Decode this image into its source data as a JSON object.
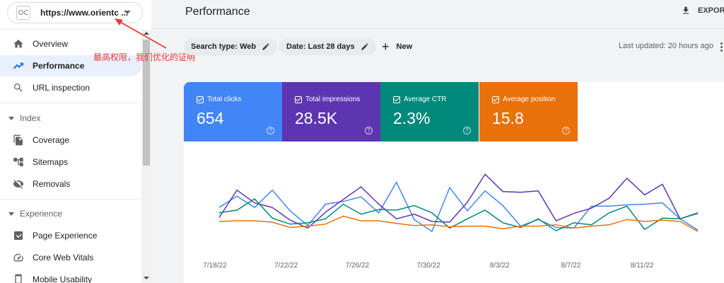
{
  "property": {
    "logo_text": "OC",
    "url": "https://www.orientc ..."
  },
  "sidebar": {
    "items": [
      {
        "label": "Overview",
        "icon": "home-icon"
      },
      {
        "label": "Performance",
        "icon": "trending-up-icon",
        "active": true
      },
      {
        "label": "URL inspection",
        "icon": "search-icon"
      }
    ],
    "index_section": {
      "title": "Index",
      "items": [
        {
          "label": "Coverage",
          "icon": "file-copy-icon"
        },
        {
          "label": "Sitemaps",
          "icon": "sitemap-icon"
        },
        {
          "label": "Removals",
          "icon": "visibility-off-icon"
        }
      ]
    },
    "experience_section": {
      "title": "Experience",
      "items": [
        {
          "label": "Page Experience",
          "icon": "page-experience-icon"
        },
        {
          "label": "Core Web Vitals",
          "icon": "speed-icon"
        },
        {
          "label": "Mobile Usability",
          "icon": "smartphone-icon"
        }
      ]
    }
  },
  "annotation": {
    "text": "最高权限，我们优化的证明",
    "color": "#e53935"
  },
  "header": {
    "title": "Performance",
    "export_label": "EXPOR"
  },
  "filters": {
    "search_type": "Search type: Web",
    "date": "Date: Last 28 days",
    "new_label": "New",
    "last_updated": "Last updated: 20 hours ago"
  },
  "metrics": [
    {
      "label": "Total clicks",
      "value": "654",
      "color": "#4285f4"
    },
    {
      "label": "Total impressions",
      "value": "28.5K",
      "color": "#5e35b1"
    },
    {
      "label": "Average CTR",
      "value": "2.3%",
      "color": "#00897b"
    },
    {
      "label": "Average position",
      "value": "15.8",
      "color": "#e8710a"
    }
  ],
  "chart_data": {
    "type": "line",
    "x_tick_labels": [
      "7/18/22",
      "7/22/22",
      "7/26/22",
      "7/30/22",
      "8/3/22",
      "8/7/22",
      "8/11/22"
    ],
    "y_scale": "relative per series (no y axis shown); values are normalized 0-100 heights",
    "series": [
      {
        "name": "Total clicks",
        "color": "#4285f4",
        "values": [
          38,
          55,
          38,
          64,
          33,
          11,
          43,
          47,
          54,
          30,
          76,
          20,
          2,
          68,
          33,
          63,
          41,
          10,
          20,
          8,
          7,
          40,
          40,
          42,
          43,
          45,
          21,
          4
        ]
      },
      {
        "name": "Total impressions",
        "color": "#5e35b1",
        "values": [
          23,
          64,
          45,
          38,
          19,
          7,
          31,
          50,
          69,
          43,
          21,
          28,
          17,
          16,
          46,
          88,
          62,
          61,
          63,
          18,
          29,
          37,
          52,
          82,
          57,
          73,
          21,
          30
        ]
      },
      {
        "name": "Average CTR",
        "color": "#00897b",
        "values": [
          30,
          34,
          51,
          22,
          13,
          15,
          21,
          43,
          28,
          35,
          34,
          41,
          30,
          7,
          21,
          34,
          15,
          8,
          21,
          3,
          15,
          12,
          30,
          40,
          5,
          22,
          21,
          29
        ]
      },
      {
        "name": "Average position",
        "color": "#e8710a",
        "values": [
          17,
          18,
          18,
          16,
          8,
          10,
          13,
          25,
          18,
          18,
          14,
          11,
          12,
          9,
          10,
          10,
          6,
          10,
          10,
          12,
          7,
          10,
          12,
          20,
          17,
          19,
          17,
          2
        ]
      }
    ]
  }
}
